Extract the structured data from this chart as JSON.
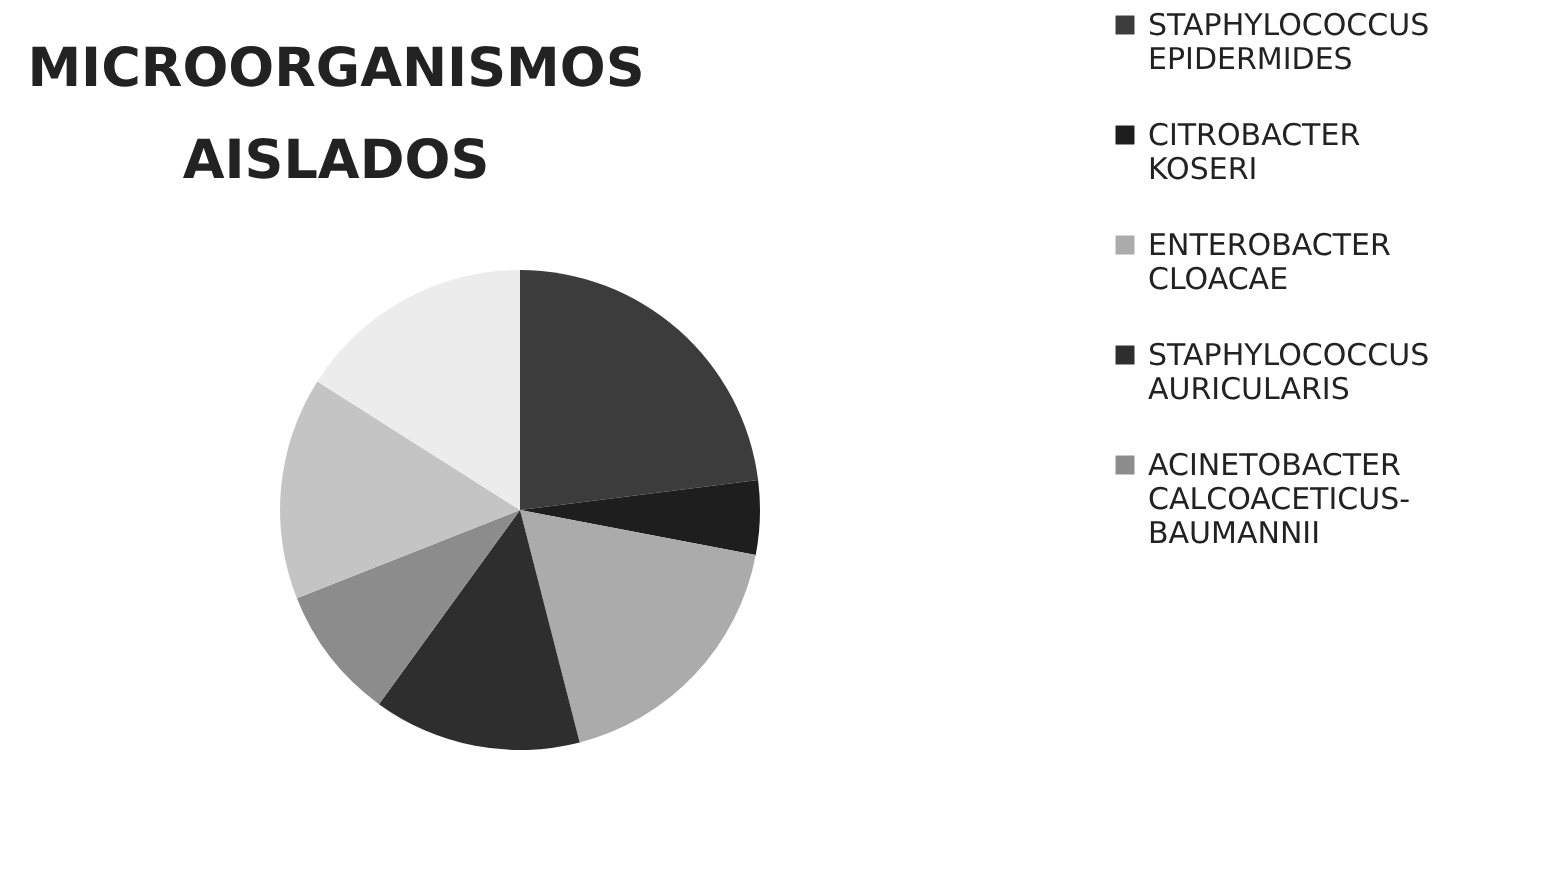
{
  "chart_data": {
    "type": "pie",
    "title": "MICROORGANISMOS AISLADOS",
    "categories": [
      "STAPHYLOCOCCUS EPIDERMIDES",
      "CITROBACTER KOSERI",
      "ENTEROBACTER CLOACAE",
      "STAPHYLOCOCCUS AURICULARIS",
      "ACINETOBACTER CALCOACETICUS-BAUMANNII",
      null,
      null
    ],
    "values": [
      23,
      5,
      18,
      14,
      9,
      15,
      16
    ],
    "colors": [
      "#3c3c3c",
      "#1e1e1e",
      "#ababab",
      "#2e2e2e",
      "#8c8c8c",
      "#c4c4c4",
      "#ececec"
    ],
    "legend": "right"
  }
}
